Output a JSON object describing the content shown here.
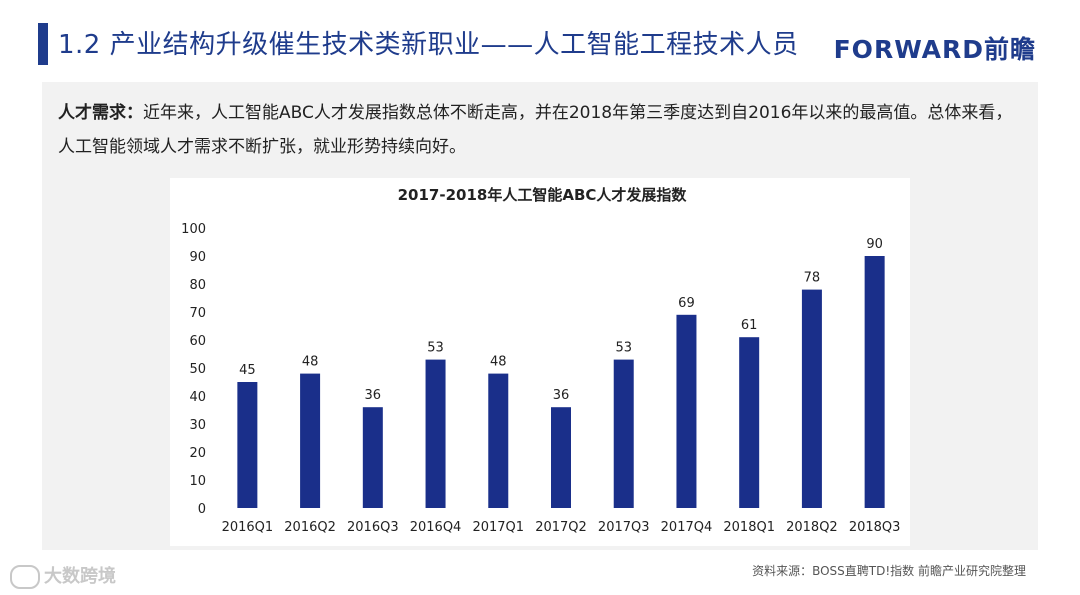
{
  "header": {
    "title": "1.2 产业结构升级催生技术类新职业——人工智能工程技术人员",
    "brand": "FORWARD前瞻"
  },
  "description": {
    "label": "人才需求：",
    "text": "近年来，人工智能ABC人才发展指数总体不断走高，并在2018年第三季度达到自2016年以来的最高值。总体来看，人工智能领域人才需求不断扩张，就业形势持续向好。"
  },
  "chart_data": {
    "type": "bar",
    "title": "2017-2018年人工智能ABC人才发展指数",
    "categories": [
      "2016Q1",
      "2016Q2",
      "2016Q3",
      "2016Q4",
      "2017Q1",
      "2017Q2",
      "2017Q3",
      "2017Q4",
      "2018Q1",
      "2018Q2",
      "2018Q3"
    ],
    "values": [
      45,
      48,
      36,
      53,
      48,
      36,
      53,
      69,
      61,
      78,
      90
    ],
    "yticks": [
      0,
      10,
      20,
      30,
      40,
      50,
      60,
      70,
      80,
      90,
      100
    ],
    "ylim": [
      0,
      100
    ],
    "bar_color": "#1a2f8a",
    "grid": false,
    "legend": "none"
  },
  "footer": {
    "source": "资料来源：BOSS直聘TD!指数 前瞻产业研究院整理",
    "watermark": "大数跨境"
  }
}
